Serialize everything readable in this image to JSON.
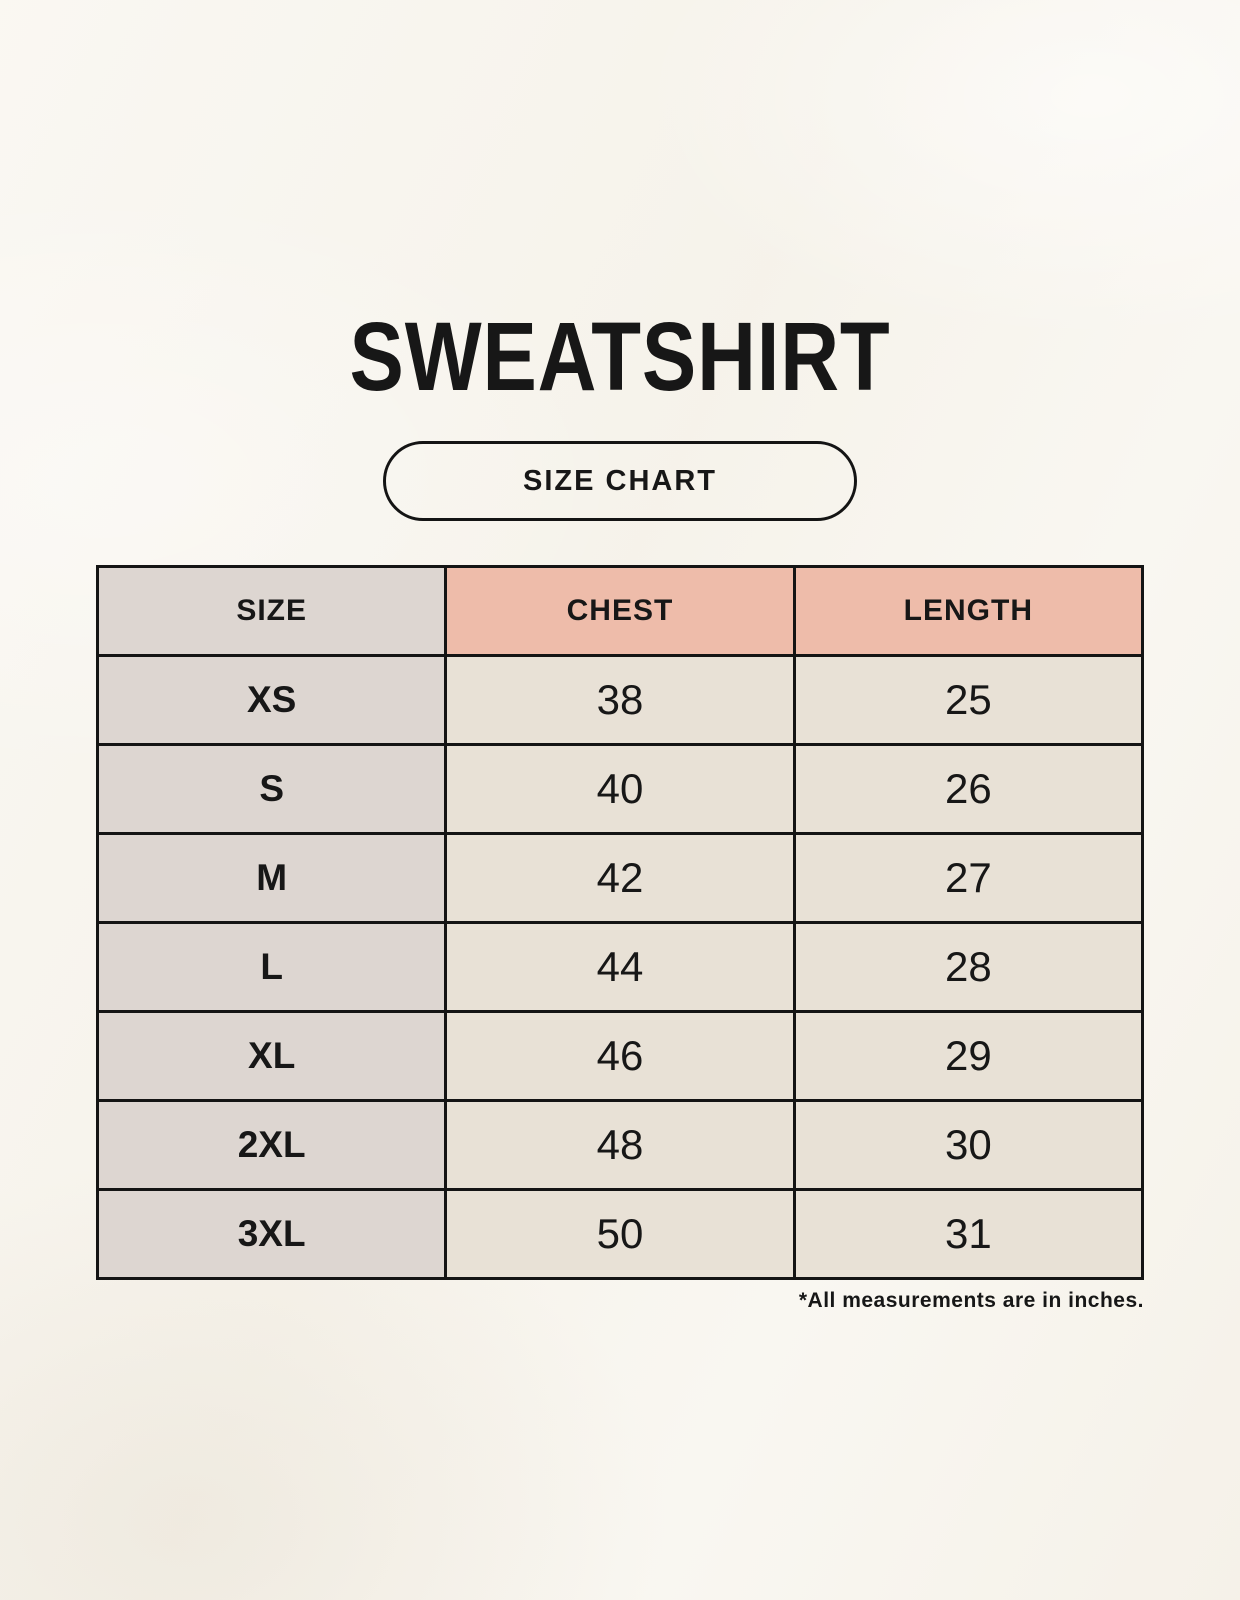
{
  "title": "SWEATSHIRT",
  "size_chart_button": "SIZE CHART",
  "table": {
    "headers": [
      "SIZE",
      "CHEST",
      "LENGTH"
    ],
    "rows": [
      [
        "XS",
        "38",
        "25"
      ],
      [
        "S",
        "40",
        "26"
      ],
      [
        "M",
        "42",
        "27"
      ],
      [
        "L",
        "44",
        "28"
      ],
      [
        "XL",
        "46",
        "29"
      ],
      [
        "2XL",
        "48",
        "30"
      ],
      [
        "3XL",
        "50",
        "31"
      ]
    ]
  },
  "footnote": "*All measurements are in inches.",
  "colors": {
    "page_bg": "#f8f5ee",
    "size_column_bg": "#ddd6d1",
    "measure_header_bg": "#eebcaa",
    "data_cell_bg": "#e8e1d6",
    "border": "#141414",
    "text": "#171717"
  },
  "chart_data": {
    "type": "table",
    "title": "SWEATSHIRT",
    "subtitle": "SIZE CHART",
    "columns": [
      "SIZE",
      "CHEST",
      "LENGTH"
    ],
    "rows": [
      [
        "XS",
        38,
        25
      ],
      [
        "S",
        40,
        26
      ],
      [
        "M",
        42,
        27
      ],
      [
        "L",
        44,
        28
      ],
      [
        "XL",
        46,
        29
      ],
      [
        "2XL",
        48,
        30
      ],
      [
        "3XL",
        50,
        31
      ]
    ],
    "units": "inches",
    "notes": "*All measurements are in inches."
  }
}
